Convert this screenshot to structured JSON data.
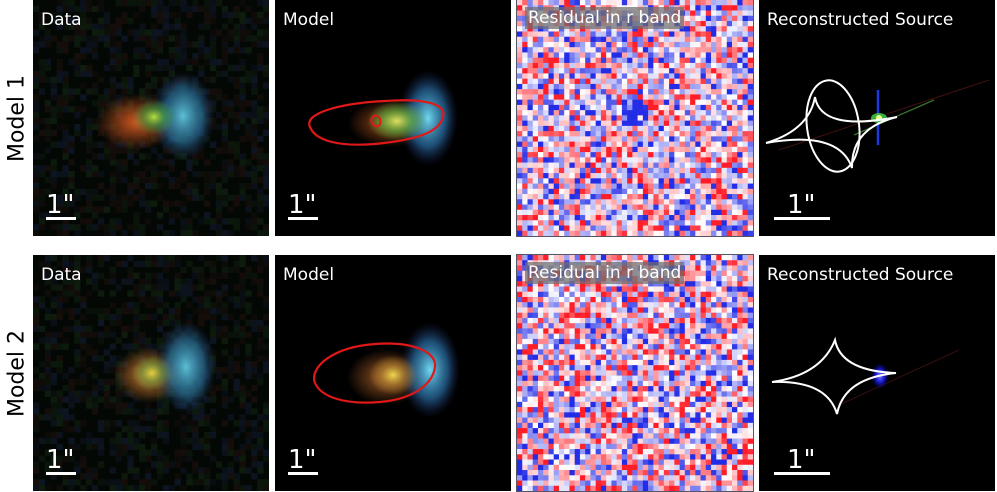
{
  "rows": [
    {
      "label": "Model 1",
      "panels": [
        {
          "title": "Data",
          "scale": "1\""
        },
        {
          "title": "Model",
          "scale": "1\""
        },
        {
          "title": "Residual in r band"
        },
        {
          "title": "Reconstructed Source",
          "scale": "1\""
        }
      ]
    },
    {
      "label": "Model 2",
      "panels": [
        {
          "title": "Data",
          "scale": "1\""
        },
        {
          "title": "Model",
          "scale": "1\""
        },
        {
          "title": "Residual in r band"
        },
        {
          "title": "Reconstructed Source",
          "scale": "1\""
        }
      ]
    }
  ],
  "colors": {
    "background": "#000000",
    "critical_curve": "#e01818",
    "caustic": "#ffffff",
    "residual_positive": "#e8202a",
    "residual_negative": "#2030e0"
  }
}
